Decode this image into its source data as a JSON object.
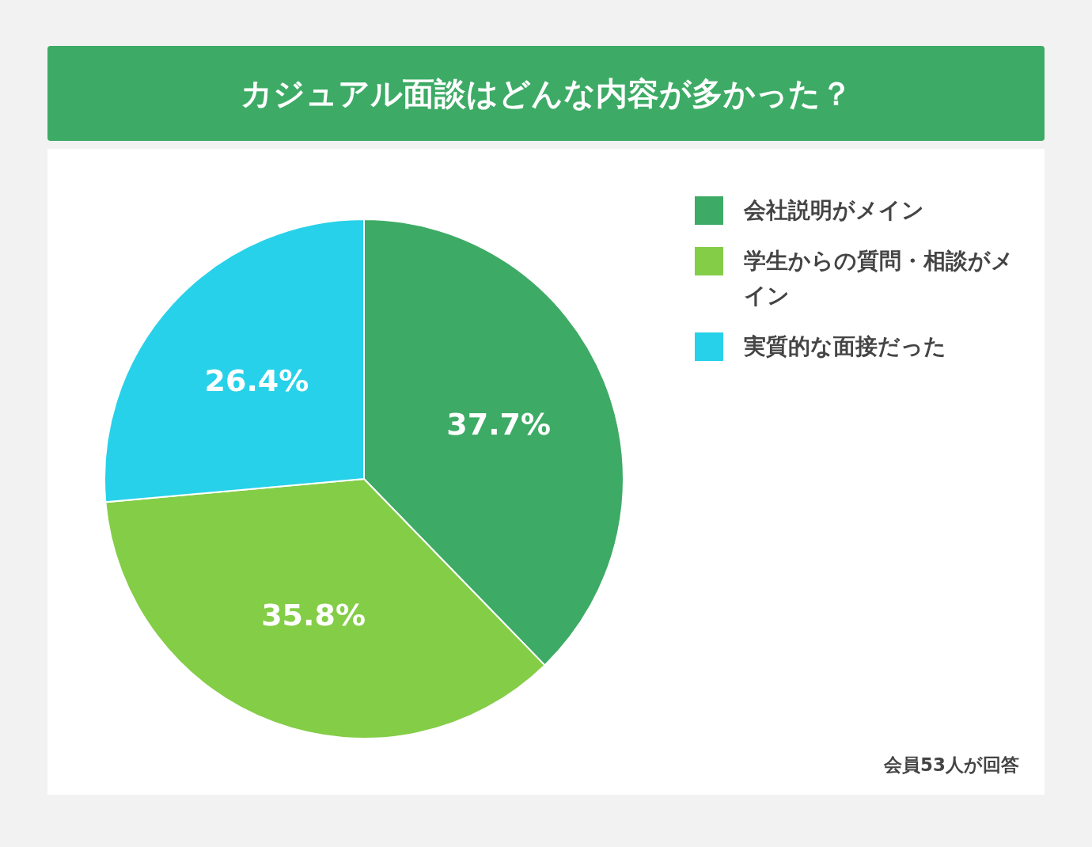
{
  "chart_data": {
    "type": "pie",
    "title": "カジュアル面談はどんな内容が多かった？",
    "categories": [
      "会社説明がメイン",
      "学生からの質問・相談がメイン",
      "実質的な面接だった"
    ],
    "values": [
      37.7,
      35.8,
      26.4
    ],
    "colors": [
      "#3dab65",
      "#84cd47",
      "#27d1e9"
    ],
    "value_labels": [
      "37.7%",
      "35.8%",
      "26.4%"
    ],
    "legend": "top right",
    "annotations": [
      "会員53人が回答"
    ]
  }
}
